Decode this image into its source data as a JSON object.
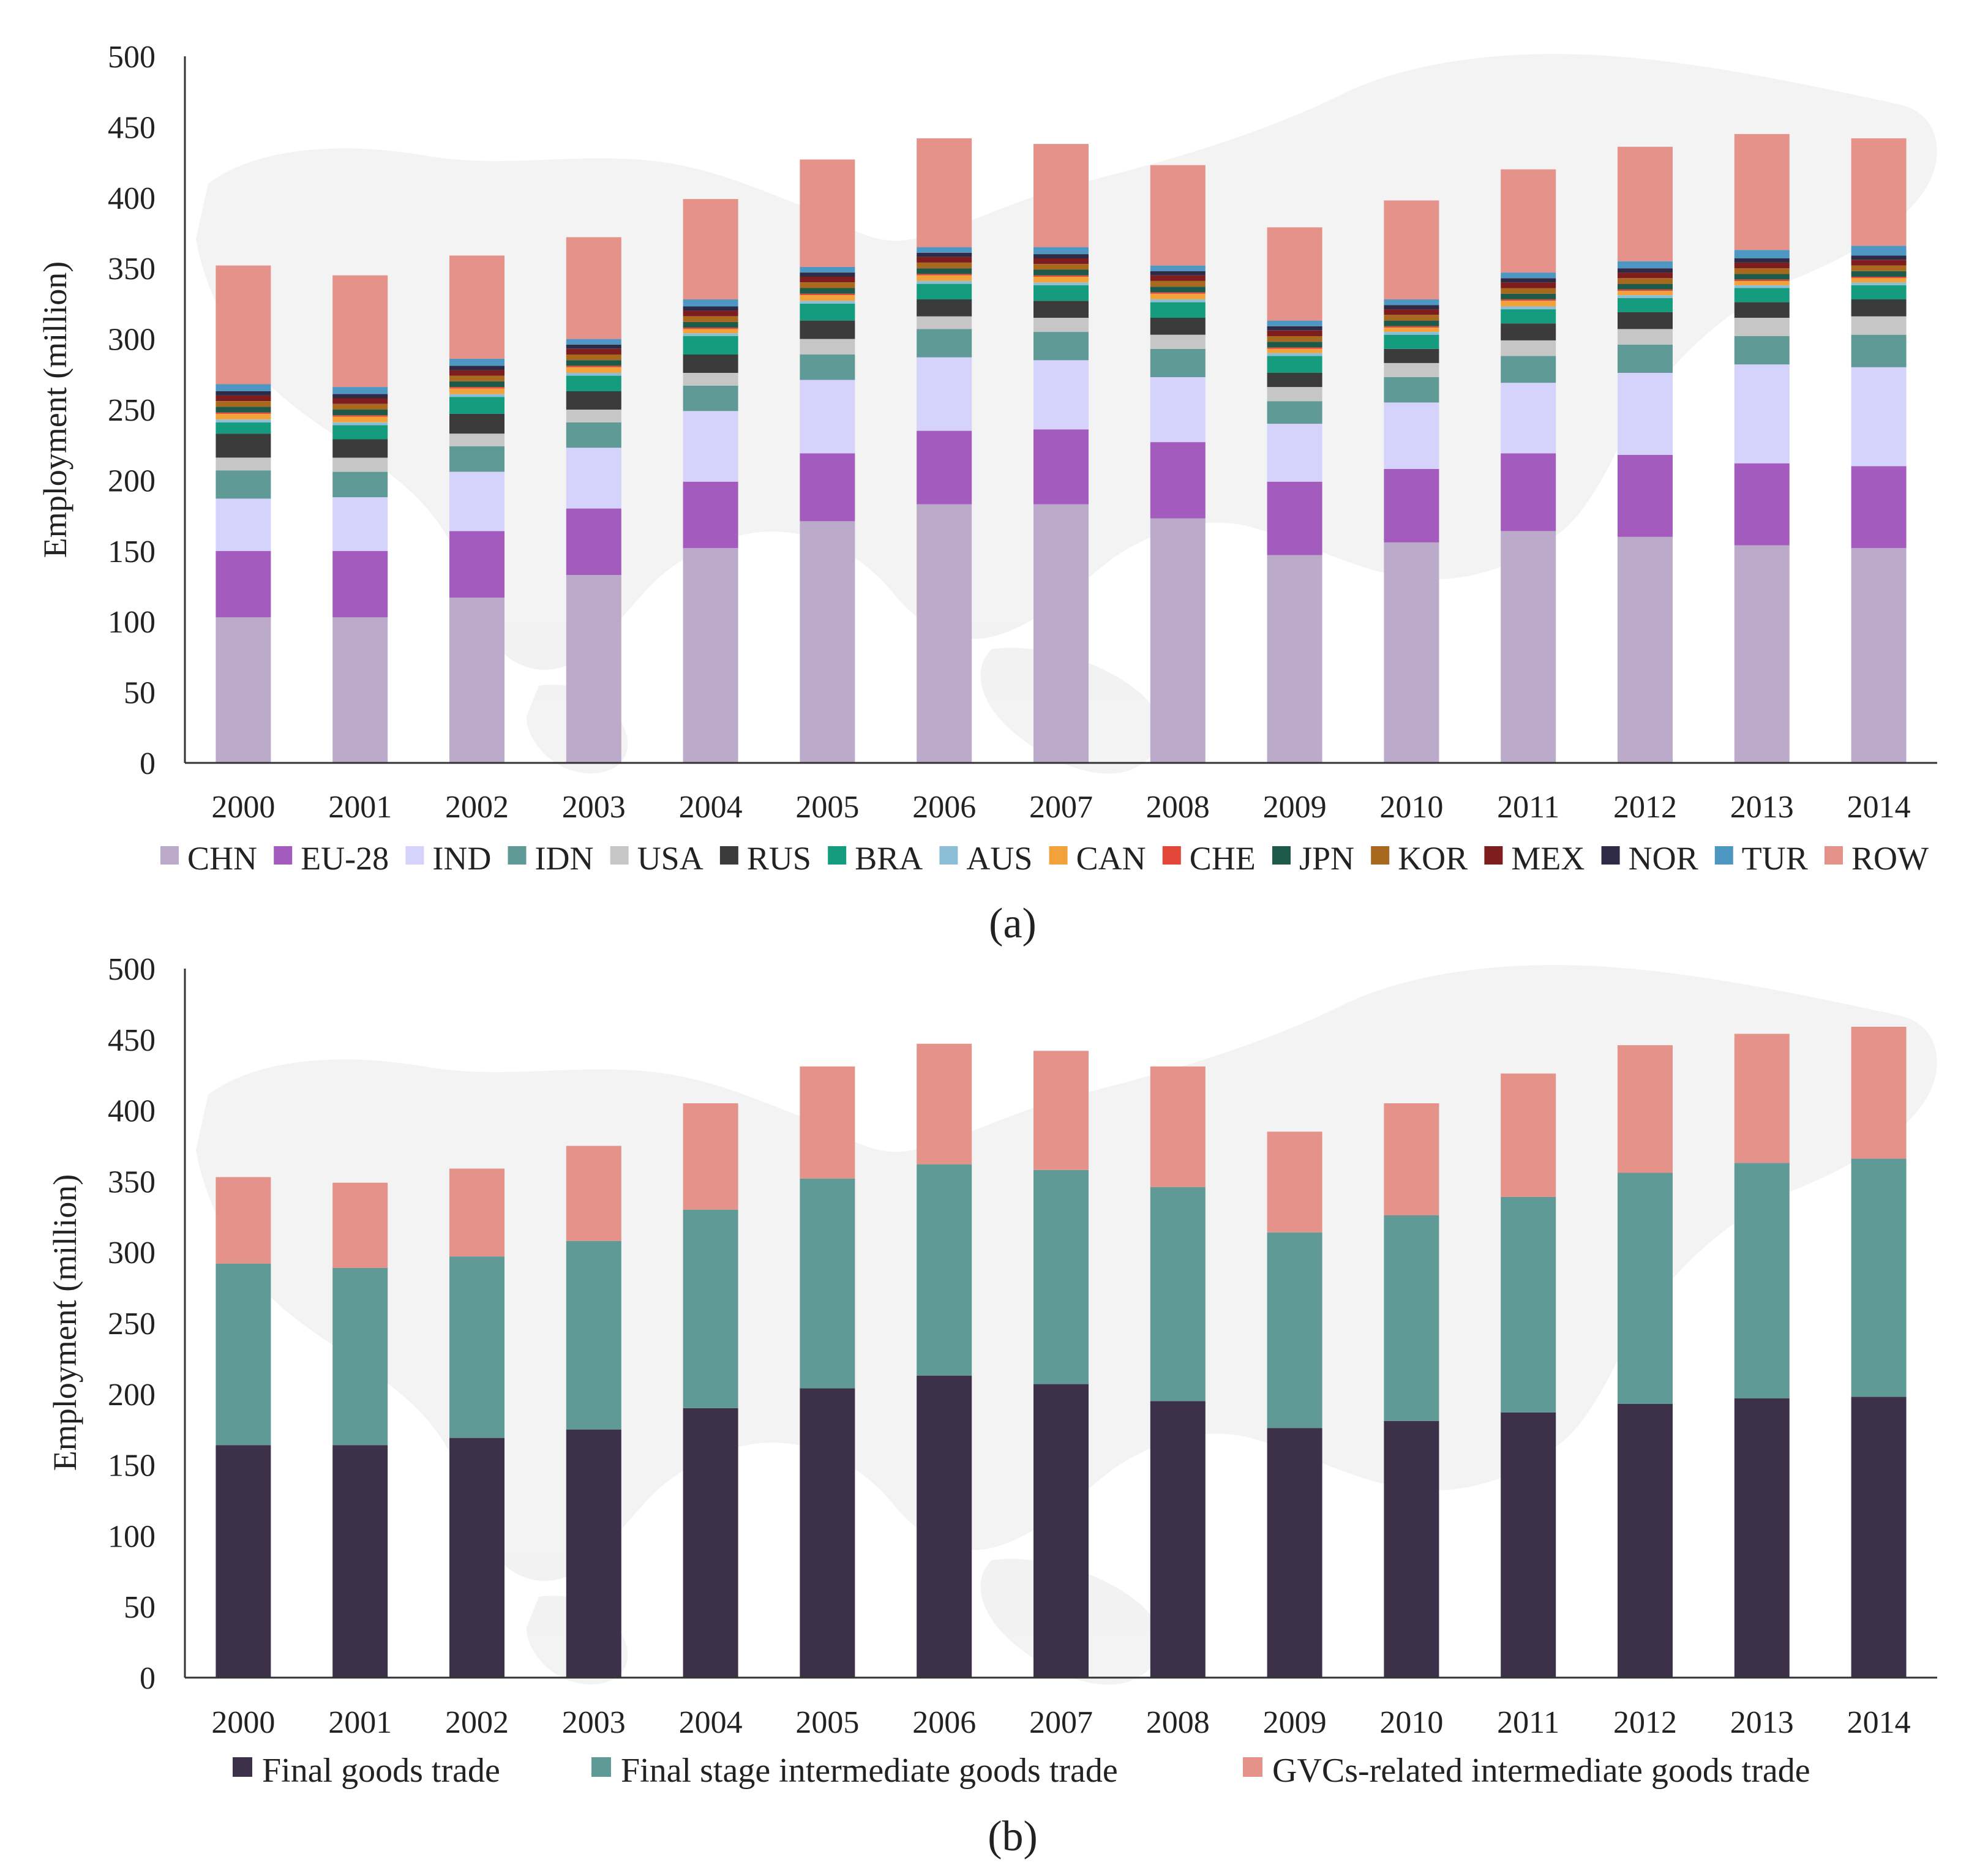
{
  "chart_data": [
    {
      "type": "bar",
      "stacked": true,
      "panel_label": "(a)",
      "title": "",
      "xlabel": "",
      "ylabel": "Employment (million)",
      "ylim": [
        0,
        500
      ],
      "yticks": [
        0,
        50,
        100,
        150,
        200,
        250,
        300,
        350,
        400,
        450,
        500
      ],
      "grid": false,
      "legend_position": "bottom",
      "categories": [
        "2000",
        "2001",
        "2002",
        "2003",
        "2004",
        "2005",
        "2006",
        "2007",
        "2008",
        "2009",
        "2010",
        "2011",
        "2012",
        "2013",
        "2014"
      ],
      "series": [
        {
          "name": "CHN",
          "color": "#bcaacb",
          "values": [
            103,
            103,
            117,
            133,
            152,
            171,
            183,
            183,
            173,
            147,
            156,
            164,
            160,
            154,
            152
          ]
        },
        {
          "name": "EU-28",
          "color": "#a35bbd",
          "values": [
            47,
            47,
            47,
            47,
            47,
            48,
            52,
            53,
            54,
            52,
            52,
            55,
            58,
            58,
            58
          ]
        },
        {
          "name": "IND",
          "color": "#d5d2fb",
          "values": [
            37,
            38,
            42,
            43,
            50,
            52,
            52,
            49,
            46,
            41,
            47,
            50,
            58,
            70,
            70
          ]
        },
        {
          "name": "IDN",
          "color": "#5f9a96",
          "values": [
            20,
            18,
            18,
            18,
            18,
            18,
            20,
            20,
            20,
            16,
            18,
            19,
            20,
            20,
            23
          ]
        },
        {
          "name": "USA",
          "color": "#c6c6c6",
          "values": [
            9,
            10,
            9,
            9,
            9,
            11,
            9,
            10,
            10,
            10,
            10,
            11,
            11,
            13,
            13
          ]
        },
        {
          "name": "RUS",
          "color": "#3b3b3b",
          "values": [
            17,
            13,
            14,
            13,
            13,
            13,
            12,
            12,
            12,
            10,
            10,
            12,
            12,
            11,
            12
          ]
        },
        {
          "name": "BRA",
          "color": "#159c7f",
          "values": [
            8,
            10,
            12,
            11,
            13,
            12,
            11,
            11,
            11,
            12,
            10,
            10,
            10,
            10,
            10
          ]
        },
        {
          "name": "AUS",
          "color": "#8cbfd7",
          "values": [
            2,
            2,
            2,
            2,
            2,
            2,
            2,
            2,
            2,
            2,
            2,
            2,
            2,
            2,
            2
          ]
        },
        {
          "name": "CAN",
          "color": "#f2a23a",
          "values": [
            4,
            4,
            4,
            4,
            3,
            4,
            4,
            4,
            4,
            3,
            3,
            4,
            3,
            3,
            3
          ]
        },
        {
          "name": "CHE",
          "color": "#e2473a",
          "values": [
            1,
            1,
            1,
            1,
            1,
            1,
            1,
            1,
            1,
            1,
            1,
            1,
            1,
            1,
            1
          ]
        },
        {
          "name": "JPN",
          "color": "#1d5a49",
          "values": [
            4,
            4,
            4,
            4,
            4,
            4,
            4,
            4,
            4,
            4,
            4,
            4,
            4,
            4,
            4
          ]
        },
        {
          "name": "KOR",
          "color": "#a8681d",
          "values": [
            4,
            4,
            4,
            4,
            4,
            4,
            4,
            4,
            4,
            4,
            4,
            4,
            4,
            4,
            4
          ]
        },
        {
          "name": "MEX",
          "color": "#7d1d1d",
          "values": [
            4,
            4,
            4,
            4,
            4,
            4,
            4,
            4,
            4,
            4,
            4,
            4,
            4,
            4,
            4
          ]
        },
        {
          "name": "NOR",
          "color": "#2f2a45",
          "values": [
            3,
            3,
            3,
            3,
            3,
            3,
            3,
            3,
            3,
            3,
            3,
            3,
            3,
            3,
            3
          ]
        },
        {
          "name": "TUR",
          "color": "#4f97c3",
          "values": [
            5,
            5,
            5,
            4,
            5,
            4,
            4,
            5,
            4,
            4,
            4,
            4,
            5,
            6,
            7
          ]
        },
        {
          "name": "ROW",
          "color": "#e5928a",
          "values": [
            84,
            79,
            73,
            72,
            71,
            76,
            77,
            73,
            71,
            66,
            70,
            73,
            81,
            82,
            76
          ]
        }
      ]
    },
    {
      "type": "bar",
      "stacked": true,
      "panel_label": "(b)",
      "title": "",
      "xlabel": "",
      "ylabel": "Employment (million)",
      "ylim": [
        0,
        500
      ],
      "yticks": [
        0,
        50,
        100,
        150,
        200,
        250,
        300,
        350,
        400,
        450,
        500
      ],
      "grid": false,
      "legend_position": "bottom",
      "categories": [
        "2000",
        "2001",
        "2002",
        "2003",
        "2004",
        "2005",
        "2006",
        "2007",
        "2008",
        "2009",
        "2010",
        "2011",
        "2012",
        "2013",
        "2014"
      ],
      "series": [
        {
          "name": "Final goods trade",
          "color": "#3d3049",
          "values": [
            164,
            164,
            169,
            175,
            190,
            204,
            213,
            207,
            195,
            176,
            181,
            187,
            193,
            197,
            198
          ]
        },
        {
          "name": "Final stage intermediate goods trade",
          "color": "#5f9a96",
          "values": [
            128,
            125,
            128,
            133,
            140,
            148,
            149,
            151,
            151,
            138,
            145,
            152,
            163,
            166,
            168
          ]
        },
        {
          "name": "GVCs-related intermediate goods trade",
          "color": "#e5928a",
          "values": [
            61,
            60,
            62,
            67,
            75,
            79,
            85,
            84,
            85,
            71,
            79,
            87,
            90,
            91,
            93
          ]
        }
      ]
    }
  ]
}
